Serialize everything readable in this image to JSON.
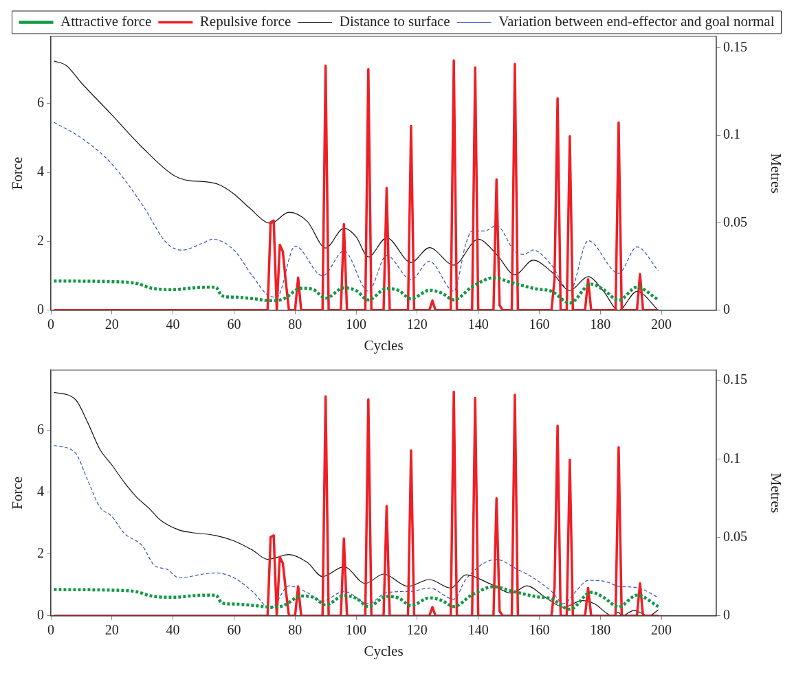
{
  "chart_data": [
    {
      "type": "line",
      "xlabel": "Cycles",
      "ylabel": "Force",
      "y2label": "Metres",
      "legend": "top",
      "xlim": [
        0,
        218
      ],
      "xticks": [
        0,
        20,
        40,
        60,
        80,
        100,
        120,
        140,
        160,
        180,
        200
      ],
      "ylim": [
        0,
        7.95
      ],
      "yticks": [
        0,
        2,
        4,
        6
      ],
      "y2lim": [
        0,
        0.1566
      ],
      "y2ticks": [
        0,
        0.05,
        0.1,
        0.15
      ],
      "series": [
        {
          "name": "Attractive force",
          "color": "#119944",
          "line_style": "dotted",
          "x": [
            1,
            20,
            28,
            33,
            40,
            48,
            54,
            56,
            60,
            66,
            72,
            76,
            82,
            86,
            90,
            96,
            100,
            104,
            110,
            114,
            118,
            124,
            128,
            132,
            138,
            145,
            151,
            159,
            164,
            170,
            177,
            181,
            186,
            192,
            199
          ],
          "values": [
            0.85,
            0.83,
            0.78,
            0.64,
            0.6,
            0.66,
            0.67,
            0.42,
            0.38,
            0.34,
            0.28,
            0.32,
            0.64,
            0.6,
            0.35,
            0.65,
            0.57,
            0.3,
            0.63,
            0.57,
            0.33,
            0.58,
            0.5,
            0.3,
            0.68,
            0.94,
            0.8,
            0.62,
            0.55,
            0.21,
            0.76,
            0.6,
            0.29,
            0.67,
            0.3
          ]
        },
        {
          "name": "Repulsive force",
          "color": "#ee1f26",
          "line_style": "solid",
          "x": [
            1,
            71,
            72,
            73,
            74,
            75,
            76,
            77,
            78,
            80,
            81,
            82,
            89,
            90,
            91,
            95,
            96,
            97,
            103,
            104,
            105,
            109,
            110,
            111,
            117,
            118,
            119,
            124,
            125,
            126,
            131,
            132,
            133,
            138,
            139,
            140,
            145,
            146,
            147,
            148,
            151,
            152,
            153,
            164,
            165,
            166,
            167,
            169,
            170,
            171,
            175,
            176,
            177,
            185,
            186,
            187,
            192,
            193,
            194,
            199
          ],
          "values": [
            0,
            0,
            2.55,
            2.6,
            0,
            1.9,
            1.7,
            0.8,
            0,
            0,
            0.95,
            0,
            0,
            7.1,
            0,
            0,
            2.5,
            0,
            0,
            7.0,
            0,
            0,
            3.55,
            0,
            0,
            5.35,
            0,
            0,
            0.28,
            0,
            0,
            7.25,
            0,
            0,
            7.05,
            0,
            0,
            3.8,
            0.15,
            0,
            0,
            7.15,
            0,
            0,
            0.9,
            6.15,
            0,
            0,
            5.05,
            0,
            0,
            0.9,
            0,
            0,
            5.45,
            0,
            0,
            1.05,
            0,
            0
          ]
        },
        {
          "name": "Distance to surface",
          "color": "#111111",
          "line_style": "solid",
          "axis": "y2",
          "x": [
            1,
            5,
            10,
            20,
            30,
            40,
            45,
            50,
            55,
            60,
            65,
            72,
            78,
            84,
            90,
            96,
            100,
            104,
            110,
            118,
            124,
            132,
            140,
            146,
            152,
            158,
            164,
            170,
            176,
            181,
            186,
            192,
            199
          ],
          "values": [
            0.1425,
            0.14,
            0.13,
            0.1117,
            0.093,
            0.0774,
            0.0742,
            0.0736,
            0.0719,
            0.0665,
            0.0586,
            0.0497,
            0.056,
            0.0508,
            0.0356,
            0.0469,
            0.042,
            0.0305,
            0.0414,
            0.0273,
            0.0358,
            0.0258,
            0.0406,
            0.032,
            0.0203,
            0.0286,
            0.022,
            0.0113,
            0.0192,
            0.011,
            0,
            0.0108,
            0
          ]
        },
        {
          "name": "Variation between end-effector and goal normal",
          "color": "#3355bb",
          "line_style": "dashed",
          "axis": "y2",
          "x": [
            1,
            10,
            20,
            30,
            38,
            43,
            50,
            53,
            60,
            66,
            72,
            74,
            80,
            89,
            96,
            104,
            110,
            118,
            124,
            132,
            136,
            138,
            142,
            146,
            152,
            155,
            158,
            164,
            170,
            176,
            186,
            192,
            199
          ],
          "values": [
            0.1075,
            0.0985,
            0.0836,
            0.0602,
            0.0383,
            0.0344,
            0.0386,
            0.0406,
            0.0344,
            0.0197,
            0.0078,
            0.0075,
            0.0367,
            0.0197,
            0.0339,
            0.0109,
            0.0313,
            0.0175,
            0.028,
            0.0109,
            0.0383,
            0.0453,
            0.0453,
            0.0484,
            0.0336,
            0.032,
            0.0344,
            0.0258,
            0.0109,
            0.0398,
            0.0211,
            0.0362,
            0.0226
          ]
        }
      ]
    },
    {
      "type": "line",
      "xlabel": "Cycles",
      "ylabel": "Force",
      "y2label": "Metres",
      "xlim": [
        0,
        218
      ],
      "xticks": [
        0,
        20,
        40,
        60,
        80,
        100,
        120,
        140,
        160,
        180,
        200
      ],
      "ylim": [
        0,
        7.95
      ],
      "yticks": [
        0,
        2,
        4,
        6
      ],
      "y2lim": [
        0,
        0.1566
      ],
      "y2ticks": [
        0,
        0.05,
        0.1,
        0.15
      ],
      "series": [
        {
          "color": "#119944",
          "line_style": "dotted",
          "x": [
            1,
            20,
            28,
            33,
            40,
            48,
            54,
            56,
            60,
            66,
            72,
            76,
            82,
            86,
            90,
            96,
            100,
            104,
            110,
            114,
            118,
            124,
            128,
            132,
            138,
            145,
            151,
            159,
            164,
            170,
            177,
            181,
            186,
            192,
            199
          ],
          "values": [
            0.85,
            0.83,
            0.78,
            0.64,
            0.6,
            0.66,
            0.67,
            0.42,
            0.38,
            0.34,
            0.28,
            0.32,
            0.64,
            0.6,
            0.35,
            0.65,
            0.57,
            0.3,
            0.63,
            0.57,
            0.33,
            0.58,
            0.5,
            0.3,
            0.68,
            0.94,
            0.8,
            0.62,
            0.55,
            0.21,
            0.76,
            0.6,
            0.29,
            0.67,
            0.3
          ]
        },
        {
          "color": "#ee1f26",
          "line_style": "solid",
          "x": [
            1,
            71,
            72,
            73,
            74,
            75,
            76,
            77,
            78,
            80,
            81,
            82,
            89,
            90,
            91,
            95,
            96,
            97,
            103,
            104,
            105,
            109,
            110,
            111,
            117,
            118,
            119,
            124,
            125,
            126,
            131,
            132,
            133,
            138,
            139,
            140,
            145,
            146,
            147,
            148,
            151,
            152,
            153,
            164,
            165,
            166,
            167,
            169,
            170,
            171,
            175,
            176,
            177,
            185,
            186,
            187,
            192,
            193,
            194,
            199
          ],
          "values": [
            0,
            0,
            2.55,
            2.6,
            0,
            1.9,
            1.7,
            0.8,
            0,
            0,
            0.95,
            0,
            0,
            7.1,
            0,
            0,
            2.5,
            0,
            0,
            7.0,
            0,
            0,
            3.55,
            0,
            0,
            5.35,
            0,
            0,
            0.28,
            0,
            0,
            7.25,
            0,
            0,
            7.05,
            0,
            0,
            3.8,
            0.15,
            0,
            0,
            7.15,
            0,
            0,
            0.9,
            6.15,
            0,
            0,
            5.05,
            0,
            0,
            0.9,
            0,
            0,
            5.45,
            0,
            0,
            1.05,
            0,
            0
          ]
        },
        {
          "color": "#111111",
          "line_style": "solid",
          "axis": "y2",
          "x": [
            1,
            8,
            12,
            16,
            20,
            24,
            28,
            32,
            36,
            42,
            46,
            54,
            60,
            66,
            71,
            78,
            84,
            89,
            96,
            103,
            109,
            117,
            124,
            131,
            136,
            144,
            151,
            156,
            162,
            168,
            174,
            178,
            184,
            186,
            187,
            191,
            196,
            199
          ],
          "values": [
            0.1425,
            0.138,
            0.1235,
            0.1063,
            0.0961,
            0.0852,
            0.0758,
            0.0688,
            0.0609,
            0.0547,
            0.0531,
            0.0512,
            0.0477,
            0.0419,
            0.036,
            0.039,
            0.034,
            0.025,
            0.0313,
            0.0206,
            0.0266,
            0.0188,
            0.0231,
            0.0177,
            0.0261,
            0.0203,
            0.0144,
            0.0191,
            0.0117,
            0.0055,
            0.0097,
            0.0078,
            0,
            0.0023,
            0,
            0.0034,
            0,
            0.0039
          ]
        },
        {
          "color": "#3355bb",
          "line_style": "dashed",
          "axis": "y2",
          "x": [
            1,
            8,
            12,
            16,
            20,
            24,
            30,
            34,
            38,
            42,
            50,
            54,
            60,
            66,
            72,
            78,
            84,
            89,
            96,
            104,
            110,
            118,
            124,
            132,
            136,
            146,
            152,
            158,
            164,
            168,
            172,
            176,
            182,
            186,
            192,
            199
          ],
          "values": [
            0.1086,
            0.1039,
            0.0867,
            0.0695,
            0.0633,
            0.0527,
            0.0445,
            0.032,
            0.0297,
            0.0242,
            0.0266,
            0.0273,
            0.0242,
            0.0156,
            0.0047,
            0.0191,
            0.0148,
            0.0094,
            0.0156,
            0.0078,
            0.0148,
            0.0156,
            0.0177,
            0.0106,
            0.0234,
            0.036,
            0.0305,
            0.0242,
            0.0156,
            0.0078,
            0.0156,
            0.0226,
            0.0217,
            0.0188,
            0.018,
            0.0117
          ]
        }
      ]
    }
  ]
}
